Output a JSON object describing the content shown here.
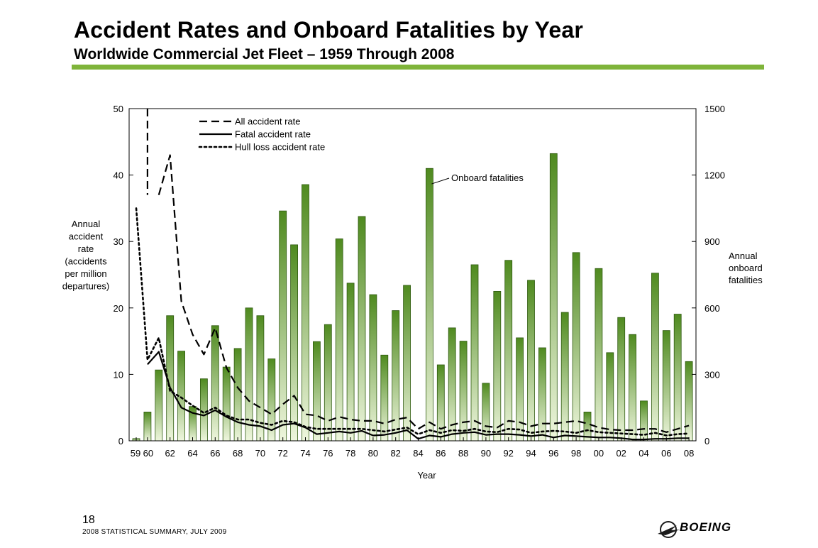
{
  "header": {
    "title": "Accident Rates and Onboard Fatalities by Year",
    "subtitle": "Worldwide Commercial Jet Fleet – 1959 Through 2008"
  },
  "footer": {
    "page_number": "18",
    "publication": "2008 STATISTICAL SUMMARY, JULY 2009",
    "logo_text": "BOEING"
  },
  "colors": {
    "accent": "#7fb43a",
    "bar_top": "#4f8a1f",
    "bar_bottom": "#eef6dd"
  },
  "chart_data": {
    "type": "bar",
    "xlabel": "Year",
    "ylabel_left": [
      "Annual",
      "accident",
      "rate",
      "(accidents",
      "per million",
      "departures)"
    ],
    "ylabel_right": [
      "Annual",
      "onboard",
      "fatalities"
    ],
    "ylim_left": [
      0,
      50
    ],
    "ylim_right": [
      0,
      1500
    ],
    "left_ticks": [
      "0",
      "10",
      "20",
      "30",
      "40",
      "50"
    ],
    "right_ticks": [
      "0",
      "300",
      "600",
      "900",
      "1200",
      "1500"
    ],
    "x_tick_labels": [
      "59",
      "60",
      "62",
      "64",
      "66",
      "68",
      "70",
      "72",
      "74",
      "76",
      "78",
      "80",
      "82",
      "84",
      "86",
      "88",
      "90",
      "92",
      "94",
      "96",
      "98",
      "00",
      "02",
      "04",
      "06",
      "08"
    ],
    "grid": false,
    "legend_position": "top-left",
    "legend": [
      "All accident rate",
      "Fatal accident rate",
      "Hull loss accident rate"
    ],
    "annotation": "Onboard fatalities",
    "years": [
      1959,
      1960,
      1961,
      1962,
      1963,
      1964,
      1965,
      1966,
      1967,
      1968,
      1969,
      1970,
      1971,
      1972,
      1973,
      1974,
      1975,
      1976,
      1977,
      1978,
      1979,
      1980,
      1981,
      1982,
      1983,
      1984,
      1985,
      1986,
      1987,
      1988,
      1989,
      1990,
      1991,
      1992,
      1993,
      1994,
      1995,
      1996,
      1997,
      1998,
      1999,
      2000,
      2001,
      2002,
      2003,
      2004,
      2005,
      2006,
      2007,
      2008
    ],
    "series": [
      {
        "name": "Onboard fatalities",
        "axis": "right",
        "style": "bar",
        "values": [
          10,
          130,
          320,
          565,
          405,
          155,
          280,
          520,
          333,
          417,
          600,
          565,
          370,
          1038,
          885,
          1157,
          448,
          525,
          912,
          712,
          1013,
          660,
          387,
          588,
          702,
          0,
          1230,
          343,
          510,
          450,
          795,
          260,
          675,
          815,
          465,
          725,
          420,
          1297,
          580,
          850,
          130,
          778,
          398,
          557,
          480,
          180,
          757,
          498,
          572,
          358
        ]
      },
      {
        "name": "All accident rate",
        "axis": "left",
        "style": "dashed",
        "values": [
          36,
          null,
          37,
          43,
          21,
          16,
          13,
          17,
          11,
          8,
          6,
          5,
          4,
          5.5,
          6.8,
          4,
          3.8,
          3,
          3.6,
          3.2,
          3,
          3,
          2.6,
          3.2,
          3.5,
          1.8,
          2.8,
          1.8,
          2.4,
          2.8,
          3,
          2.2,
          2,
          3,
          2.8,
          2.2,
          2.6,
          2.6,
          2.8,
          3,
          2.6,
          2,
          1.7,
          1.6,
          1.6,
          1.8,
          1.8,
          1.3,
          1.8,
          2.3
        ]
      },
      {
        "name": "Fatal accident rate",
        "axis": "left",
        "style": "solid",
        "values": [
          null,
          11.5,
          13.4,
          8,
          5,
          4.2,
          3.8,
          4.6,
          3.6,
          2.8,
          2.4,
          2.2,
          1.6,
          2.4,
          2.6,
          2,
          1,
          1.2,
          1.4,
          1.2,
          1.5,
          0.8,
          0.9,
          1.2,
          1.6,
          0.3,
          0.8,
          0.6,
          1,
          1.2,
          1.3,
          0.9,
          1,
          1,
          0.9,
          0.7,
          0.9,
          0.5,
          0.8,
          0.7,
          0.6,
          0.5,
          0.5,
          0.4,
          0.2,
          0.2,
          0.3,
          0.3,
          0.4,
          0.4
        ]
      },
      {
        "name": "Hull loss accident rate",
        "axis": "left",
        "style": "dotted",
        "values": [
          35,
          12.2,
          15.5,
          7.5,
          6.5,
          5.3,
          4.2,
          5,
          3.8,
          3.2,
          3.2,
          2.7,
          2.4,
          3,
          2.8,
          2.1,
          1.8,
          1.8,
          1.8,
          1.8,
          1.8,
          1.6,
          1.4,
          1.7,
          2,
          1,
          1.6,
          1.2,
          1.6,
          1.5,
          1.8,
          1.4,
          1.3,
          1.8,
          1.7,
          1.2,
          1.4,
          1.5,
          1.4,
          1.2,
          1.6,
          1.3,
          1.2,
          1.1,
          1,
          0.9,
          1.2,
          0.8,
          1,
          1.1
        ]
      }
    ]
  }
}
